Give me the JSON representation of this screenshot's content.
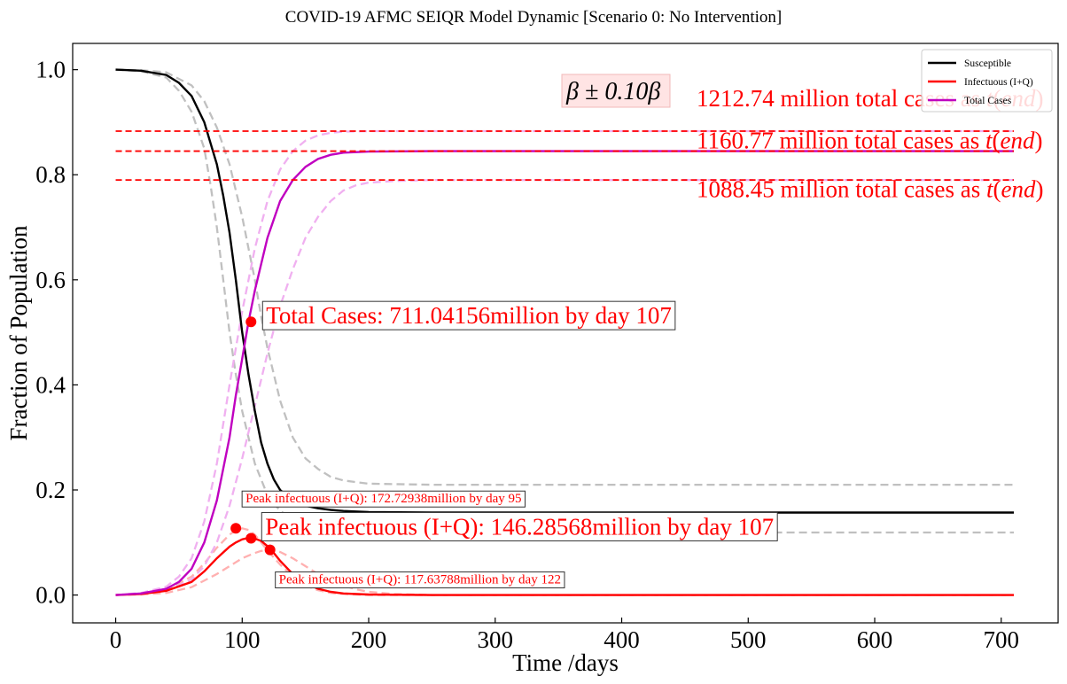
{
  "chart_data": {
    "type": "line",
    "title": "COVID-19 AFMC SEIQR Model Dynamic [Scenario 0: No Intervention]",
    "xlabel": "Time /days",
    "ylabel": "Fraction of Population",
    "xlim": [
      -34,
      745
    ],
    "ylim": [
      -0.053,
      1.05
    ],
    "xticks": [
      0,
      100,
      200,
      300,
      400,
      500,
      600,
      700
    ],
    "yticks": [
      0.0,
      0.2,
      0.4,
      0.6,
      0.8,
      1.0
    ],
    "xtick_labels": [
      "0",
      "100",
      "200",
      "300",
      "400",
      "500",
      "600",
      "700"
    ],
    "ytick_labels": [
      "0.0",
      "0.2",
      "0.4",
      "0.6",
      "0.8",
      "1.0"
    ],
    "grid": false,
    "legend_position": "top-right",
    "beta_label_prefix": "β ± 0.10",
    "beta_label_symbol": "β",
    "series": [
      {
        "name": "Susceptible",
        "color": "#000000",
        "dashed": false,
        "x": [
          0,
          20,
          40,
          50,
          60,
          70,
          80,
          85,
          90,
          95,
          100,
          105,
          110,
          115,
          120,
          125,
          130,
          140,
          150,
          160,
          170,
          180,
          200,
          250,
          300,
          400,
          500,
          600,
          710
        ],
        "values": [
          1.0,
          0.998,
          0.99,
          0.975,
          0.95,
          0.9,
          0.82,
          0.76,
          0.69,
          0.6,
          0.5,
          0.42,
          0.35,
          0.29,
          0.25,
          0.22,
          0.2,
          0.18,
          0.17,
          0.165,
          0.162,
          0.16,
          0.158,
          0.157,
          0.157,
          0.157,
          0.157,
          0.157,
          0.157
        ]
      },
      {
        "name": "Infectuous (I+Q)",
        "color": "#ff0000",
        "dashed": false,
        "x": [
          0,
          20,
          40,
          60,
          70,
          80,
          90,
          95,
          100,
          107,
          115,
          120,
          125,
          130,
          140,
          150,
          160,
          170,
          180,
          200,
          250,
          300,
          400,
          500,
          600,
          710
        ],
        "values": [
          0.0,
          0.002,
          0.008,
          0.025,
          0.045,
          0.07,
          0.092,
          0.1,
          0.106,
          0.11,
          0.103,
          0.093,
          0.08,
          0.065,
          0.04,
          0.022,
          0.012,
          0.006,
          0.003,
          0.001,
          0.0,
          0.0,
          0.0,
          0.0,
          0.0,
          0.0
        ]
      },
      {
        "name": "Total Cases",
        "color": "#c000c0",
        "dashed": false,
        "x": [
          0,
          20,
          40,
          50,
          60,
          70,
          80,
          90,
          95,
          100,
          105,
          110,
          115,
          120,
          130,
          140,
          150,
          160,
          170,
          180,
          200,
          250,
          300,
          400,
          500,
          600,
          710
        ],
        "values": [
          0.0,
          0.003,
          0.012,
          0.025,
          0.05,
          0.1,
          0.18,
          0.3,
          0.38,
          0.45,
          0.52,
          0.58,
          0.63,
          0.68,
          0.75,
          0.79,
          0.815,
          0.83,
          0.838,
          0.842,
          0.844,
          0.845,
          0.845,
          0.845,
          0.845,
          0.845,
          0.845
        ]
      },
      {
        "color": "#c0c0c0",
        "dashed": true,
        "x": [
          0,
          20,
          40,
          50,
          60,
          70,
          75,
          80,
          85,
          90,
          95,
          100,
          105,
          110,
          115,
          120,
          130,
          140,
          150,
          160,
          180,
          200,
          250,
          300,
          400,
          500,
          600,
          710
        ],
        "values": [
          1.0,
          0.997,
          0.985,
          0.96,
          0.92,
          0.85,
          0.78,
          0.7,
          0.6,
          0.5,
          0.42,
          0.35,
          0.3,
          0.25,
          0.22,
          0.19,
          0.16,
          0.145,
          0.135,
          0.128,
          0.122,
          0.12,
          0.119,
          0.119,
          0.119,
          0.119,
          0.119,
          0.119
        ]
      },
      {
        "color": "#c0c0c0",
        "dashed": true,
        "x": [
          0,
          20,
          40,
          60,
          70,
          80,
          90,
          95,
          100,
          105,
          110,
          115,
          120,
          125,
          130,
          140,
          150,
          160,
          170,
          180,
          200,
          250,
          300,
          400,
          500,
          600,
          710
        ],
        "values": [
          1.0,
          0.999,
          0.995,
          0.97,
          0.94,
          0.89,
          0.82,
          0.77,
          0.72,
          0.66,
          0.6,
          0.53,
          0.47,
          0.42,
          0.37,
          0.3,
          0.26,
          0.24,
          0.225,
          0.218,
          0.212,
          0.21,
          0.21,
          0.21,
          0.21,
          0.21,
          0.21
        ]
      },
      {
        "color": "#ffb0b0",
        "dashed": true,
        "x": [
          0,
          20,
          40,
          60,
          70,
          80,
          90,
          95,
          100,
          105,
          110,
          115,
          120,
          130,
          140,
          150,
          160,
          170,
          180,
          200,
          250,
          300,
          400,
          500,
          600,
          710
        ],
        "values": [
          0.0,
          0.003,
          0.01,
          0.035,
          0.06,
          0.09,
          0.115,
          0.123,
          0.127,
          0.124,
          0.115,
          0.1,
          0.085,
          0.058,
          0.035,
          0.018,
          0.009,
          0.004,
          0.002,
          0.0,
          0.0,
          0.0,
          0.0,
          0.0,
          0.0,
          0.0
        ]
      },
      {
        "color": "#ffb0b0",
        "dashed": true,
        "x": [
          0,
          20,
          40,
          60,
          80,
          90,
          100,
          110,
          115,
          122,
          130,
          140,
          150,
          160,
          170,
          180,
          190,
          200,
          220,
          250,
          300,
          400,
          500,
          600,
          710
        ],
        "values": [
          0.0,
          0.001,
          0.004,
          0.015,
          0.04,
          0.055,
          0.07,
          0.08,
          0.084,
          0.086,
          0.082,
          0.07,
          0.055,
          0.04,
          0.028,
          0.018,
          0.011,
          0.006,
          0.002,
          0.0,
          0.0,
          0.0,
          0.0,
          0.0,
          0.0
        ]
      },
      {
        "color": "#f0b0f0",
        "dashed": true,
        "x": [
          0,
          20,
          40,
          50,
          60,
          70,
          80,
          90,
          100,
          110,
          120,
          130,
          140,
          150,
          160,
          170,
          180,
          200,
          250,
          300,
          400,
          500,
          600,
          710
        ],
        "values": [
          0.0,
          0.004,
          0.016,
          0.035,
          0.07,
          0.14,
          0.25,
          0.4,
          0.54,
          0.66,
          0.75,
          0.81,
          0.845,
          0.865,
          0.875,
          0.88,
          0.882,
          0.883,
          0.883,
          0.883,
          0.883,
          0.883,
          0.883,
          0.883
        ]
      },
      {
        "color": "#f0b0f0",
        "dashed": true,
        "x": [
          0,
          20,
          40,
          60,
          70,
          80,
          90,
          100,
          110,
          120,
          130,
          140,
          150,
          160,
          170,
          180,
          190,
          200,
          220,
          250,
          300,
          400,
          500,
          600,
          710
        ],
        "values": [
          0.0,
          0.002,
          0.008,
          0.03,
          0.055,
          0.1,
          0.17,
          0.26,
          0.36,
          0.46,
          0.55,
          0.62,
          0.68,
          0.72,
          0.75,
          0.77,
          0.78,
          0.785,
          0.788,
          0.79,
          0.79,
          0.79,
          0.79,
          0.79,
          0.79
        ]
      }
    ],
    "hlines": [
      {
        "y": 0.883,
        "x0": 0,
        "x1": 710,
        "color": "#ff0000",
        "label": "1212.74 million total cases as ",
        "label_y": 0.93
      },
      {
        "y": 0.845,
        "x0": 0,
        "x1": 710,
        "color": "#ff0000",
        "label": "1160.77 million total cases as ",
        "label_y": 0.85
      },
      {
        "y": 0.79,
        "x0": 0,
        "x1": 710,
        "color": "#ff0000",
        "label": "1088.45 million total cases as ",
        "label_y": 0.757
      }
    ],
    "hline_label_suffix_t": "t",
    "hline_label_suffix_end": "end",
    "markers": [
      {
        "x": 107,
        "y": 0.52,
        "label": "Total Cases: 711.04156million by day 107",
        "size": "large"
      },
      {
        "x": 107,
        "y": 0.108,
        "label": "Peak infectuous (I+Q): 146.28568million by day 107",
        "size": "large"
      },
      {
        "x": 95,
        "y": 0.127,
        "label": "Peak infectuous (I+Q): 172.72938million by day 95",
        "size": "small"
      },
      {
        "x": 122,
        "y": 0.086,
        "label": "Peak infectuous (I+Q): 117.63788million by day 122",
        "size": "small"
      }
    ]
  }
}
